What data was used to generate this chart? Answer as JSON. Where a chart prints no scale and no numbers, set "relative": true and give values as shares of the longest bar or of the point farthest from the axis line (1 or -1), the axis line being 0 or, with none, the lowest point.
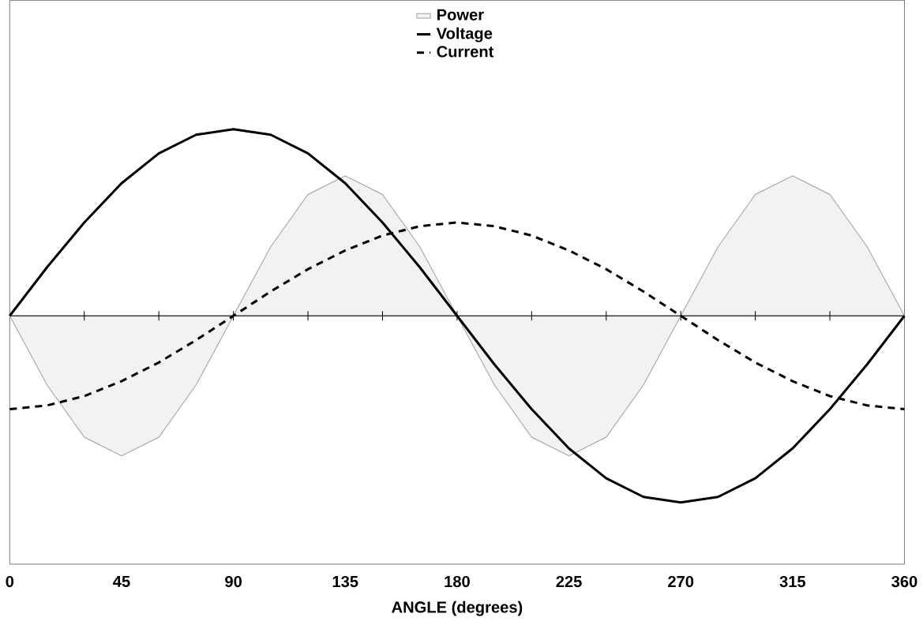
{
  "chart_data": {
    "type": "line",
    "relative": true,
    "xlabel": "ANGLE (degrees)",
    "legend": "top",
    "xlim": [
      0,
      360
    ],
    "xticks": [
      0,
      {
        "value": 30,
        "label": null
      },
      45,
      {
        "value": 60,
        "label": null
      },
      90,
      {
        "value": 120,
        "label": null
      },
      135,
      {
        "value": 150,
        "label": null
      },
      180,
      {
        "value": 210,
        "label": null
      },
      225,
      {
        "value": 240,
        "label": null
      },
      270,
      {
        "value": 300,
        "label": null
      },
      315,
      {
        "value": 330,
        "label": null
      },
      360
    ],
    "x": [
      0,
      15,
      30,
      45,
      60,
      75,
      90,
      105,
      120,
      135,
      150,
      165,
      180,
      195,
      210,
      225,
      240,
      255,
      270,
      285,
      300,
      315,
      330,
      345,
      360
    ],
    "series": [
      {
        "name": "Power",
        "type": "area",
        "color": "#a0a0a0",
        "values": [
          0,
          -0.37,
          -0.65,
          -0.75,
          -0.65,
          -0.37,
          0,
          0.37,
          0.65,
          0.75,
          0.65,
          0.37,
          0,
          -0.37,
          -0.65,
          -0.75,
          -0.65,
          -0.37,
          0,
          0.37,
          0.65,
          0.75,
          0.65,
          0.37,
          0
        ]
      },
      {
        "name": "Voltage",
        "color": "#000000",
        "line_style": "solid",
        "values": [
          0,
          0.26,
          0.5,
          0.71,
          0.87,
          0.97,
          1,
          0.97,
          0.87,
          0.71,
          0.5,
          0.26,
          0,
          -0.26,
          -0.5,
          -0.71,
          -0.87,
          -0.97,
          -1,
          -0.97,
          -0.87,
          -0.71,
          -0.5,
          -0.26,
          0
        ]
      },
      {
        "name": "Current",
        "color": "#000000",
        "line_style": "dashed",
        "values": [
          -0.5,
          -0.48,
          -0.43,
          -0.35,
          -0.25,
          -0.13,
          0,
          0.13,
          0.25,
          0.35,
          0.43,
          0.48,
          0.5,
          0.48,
          0.43,
          0.35,
          0.25,
          0.13,
          0,
          -0.13,
          -0.25,
          -0.35,
          -0.43,
          -0.48,
          -0.5
        ]
      }
    ]
  }
}
